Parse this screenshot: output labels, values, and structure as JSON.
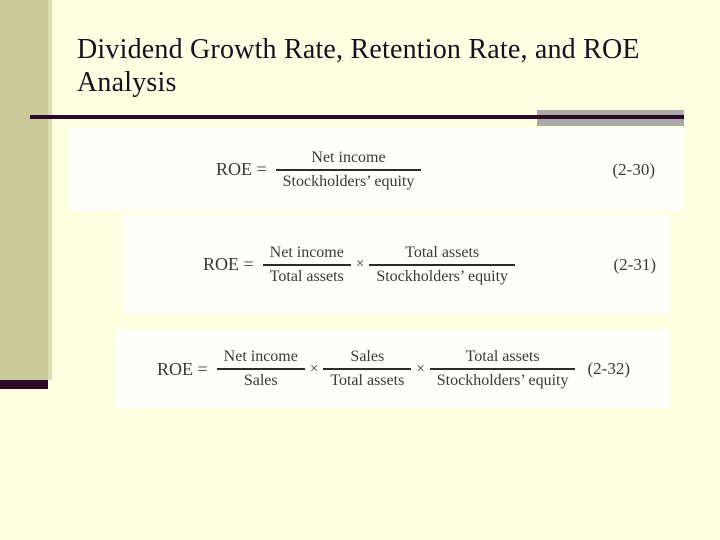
{
  "slide": {
    "title_line1": "Dividend Growth Rate, Retention Rate, and ROE",
    "title_line2": "Analysis"
  },
  "colors": {
    "background": "#FFFFE1",
    "sidebar_band": "#CBCB9A",
    "sidebar_edge": "#DCDCB2",
    "accent_bar": "#2E0A28",
    "rule": "#2E0A28",
    "gray_segment": "#A9A9A9",
    "formula_box": "#FEFEFA",
    "title_text": "#141022",
    "formula_text": "#383838"
  },
  "formula_symbols": {
    "multiply": "×"
  },
  "formulas": [
    {
      "lhs": "ROE =",
      "terms": [
        {
          "num": "Net income",
          "den": "Stockholders’ equity"
        }
      ],
      "eq_no": "(2-30)"
    },
    {
      "lhs": "ROE =",
      "terms": [
        {
          "num": "Net income",
          "den": "Total assets"
        },
        {
          "num": "Total assets",
          "den": "Stockholders’ equity"
        }
      ],
      "eq_no": "(2-31)"
    },
    {
      "lhs": "ROE =",
      "terms": [
        {
          "num": "Net income",
          "den": "Sales"
        },
        {
          "num": "Sales",
          "den": "Total assets"
        },
        {
          "num": "Total assets",
          "den": "Stockholders’ equity"
        }
      ],
      "eq_no": "(2-32)"
    }
  ]
}
